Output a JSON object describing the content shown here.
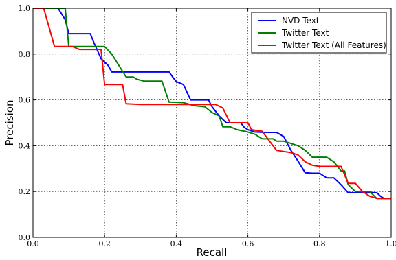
{
  "chart_data": {
    "type": "line",
    "xlabel": "Recall",
    "ylabel": "Precision",
    "xlim": [
      0.0,
      1.0
    ],
    "ylim": [
      0.0,
      1.0
    ],
    "xticks": [
      "0.0",
      "0.2",
      "0.4",
      "0.6",
      "0.8",
      "1.0"
    ],
    "yticks": [
      "0.0",
      "0.2",
      "0.4",
      "0.6",
      "0.8",
      "1.0"
    ],
    "grid": true,
    "legend_position": "top-right",
    "series": [
      {
        "name": "NVD Text",
        "color": "#0000ff",
        "x": [
          0.0,
          0.07,
          0.09,
          0.1,
          0.16,
          0.17,
          0.19,
          0.21,
          0.22,
          0.3,
          0.38,
          0.39,
          0.4,
          0.42,
          0.44,
          0.49,
          0.5,
          0.52,
          0.54,
          0.56,
          0.58,
          0.59,
          0.6,
          0.62,
          0.65,
          0.68,
          0.7,
          0.72,
          0.74,
          0.76,
          0.78,
          0.8,
          0.82,
          0.84,
          0.86,
          0.88,
          0.9,
          0.92,
          0.94,
          0.96,
          0.97,
          0.98,
          1.0
        ],
        "y": [
          1.0,
          1.0,
          0.95,
          0.889,
          0.889,
          0.85,
          0.78,
          0.75,
          0.722,
          0.722,
          0.722,
          0.7,
          0.68,
          0.667,
          0.6,
          0.6,
          0.57,
          0.53,
          0.5,
          0.5,
          0.5,
          0.48,
          0.47,
          0.46,
          0.458,
          0.458,
          0.44,
          0.38,
          0.333,
          0.282,
          0.28,
          0.28,
          0.26,
          0.26,
          0.23,
          0.195,
          0.195,
          0.195,
          0.195,
          0.195,
          0.18,
          0.17,
          0.17
        ]
      },
      {
        "name": "Twitter Text",
        "color": "#008000",
        "x": [
          0.0,
          0.09,
          0.1,
          0.14,
          0.2,
          0.22,
          0.24,
          0.26,
          0.28,
          0.29,
          0.31,
          0.36,
          0.38,
          0.39,
          0.42,
          0.45,
          0.48,
          0.5,
          0.52,
          0.53,
          0.55,
          0.57,
          0.6,
          0.62,
          0.64,
          0.67,
          0.68,
          0.7,
          0.72,
          0.74,
          0.76,
          0.78,
          0.8,
          0.82,
          0.84,
          0.86,
          0.87,
          0.88,
          0.9,
          0.92,
          0.94,
          0.96,
          1.0
        ],
        "y": [
          1.0,
          1.0,
          0.833,
          0.833,
          0.833,
          0.8,
          0.75,
          0.7,
          0.7,
          0.69,
          0.682,
          0.682,
          0.59,
          0.59,
          0.588,
          0.575,
          0.57,
          0.545,
          0.53,
          0.483,
          0.483,
          0.47,
          0.46,
          0.45,
          0.43,
          0.43,
          0.42,
          0.42,
          0.41,
          0.4,
          0.38,
          0.35,
          0.35,
          0.35,
          0.33,
          0.29,
          0.29,
          0.23,
          0.2,
          0.2,
          0.2,
          0.17,
          0.17
        ]
      },
      {
        "name": "Twitter Text (All Features)",
        "color": "#ff0000",
        "x": [
          0.0,
          0.03,
          0.06,
          0.09,
          0.11,
          0.13,
          0.17,
          0.19,
          0.2,
          0.22,
          0.25,
          0.26,
          0.3,
          0.35,
          0.4,
          0.45,
          0.5,
          0.51,
          0.53,
          0.55,
          0.58,
          0.6,
          0.61,
          0.64,
          0.67,
          0.68,
          0.7,
          0.72,
          0.74,
          0.76,
          0.78,
          0.8,
          0.82,
          0.84,
          0.86,
          0.88,
          0.9,
          0.92,
          0.94,
          0.96,
          0.98,
          1.0
        ],
        "y": [
          1.0,
          1.0,
          0.833,
          0.833,
          0.833,
          0.82,
          0.82,
          0.82,
          0.667,
          0.667,
          0.667,
          0.583,
          0.58,
          0.58,
          0.58,
          0.58,
          0.58,
          0.58,
          0.565,
          0.5,
          0.5,
          0.5,
          0.47,
          0.463,
          0.4,
          0.38,
          0.375,
          0.37,
          0.36,
          0.33,
          0.315,
          0.31,
          0.31,
          0.31,
          0.31,
          0.236,
          0.236,
          0.2,
          0.18,
          0.17,
          0.17,
          0.17
        ]
      }
    ]
  }
}
